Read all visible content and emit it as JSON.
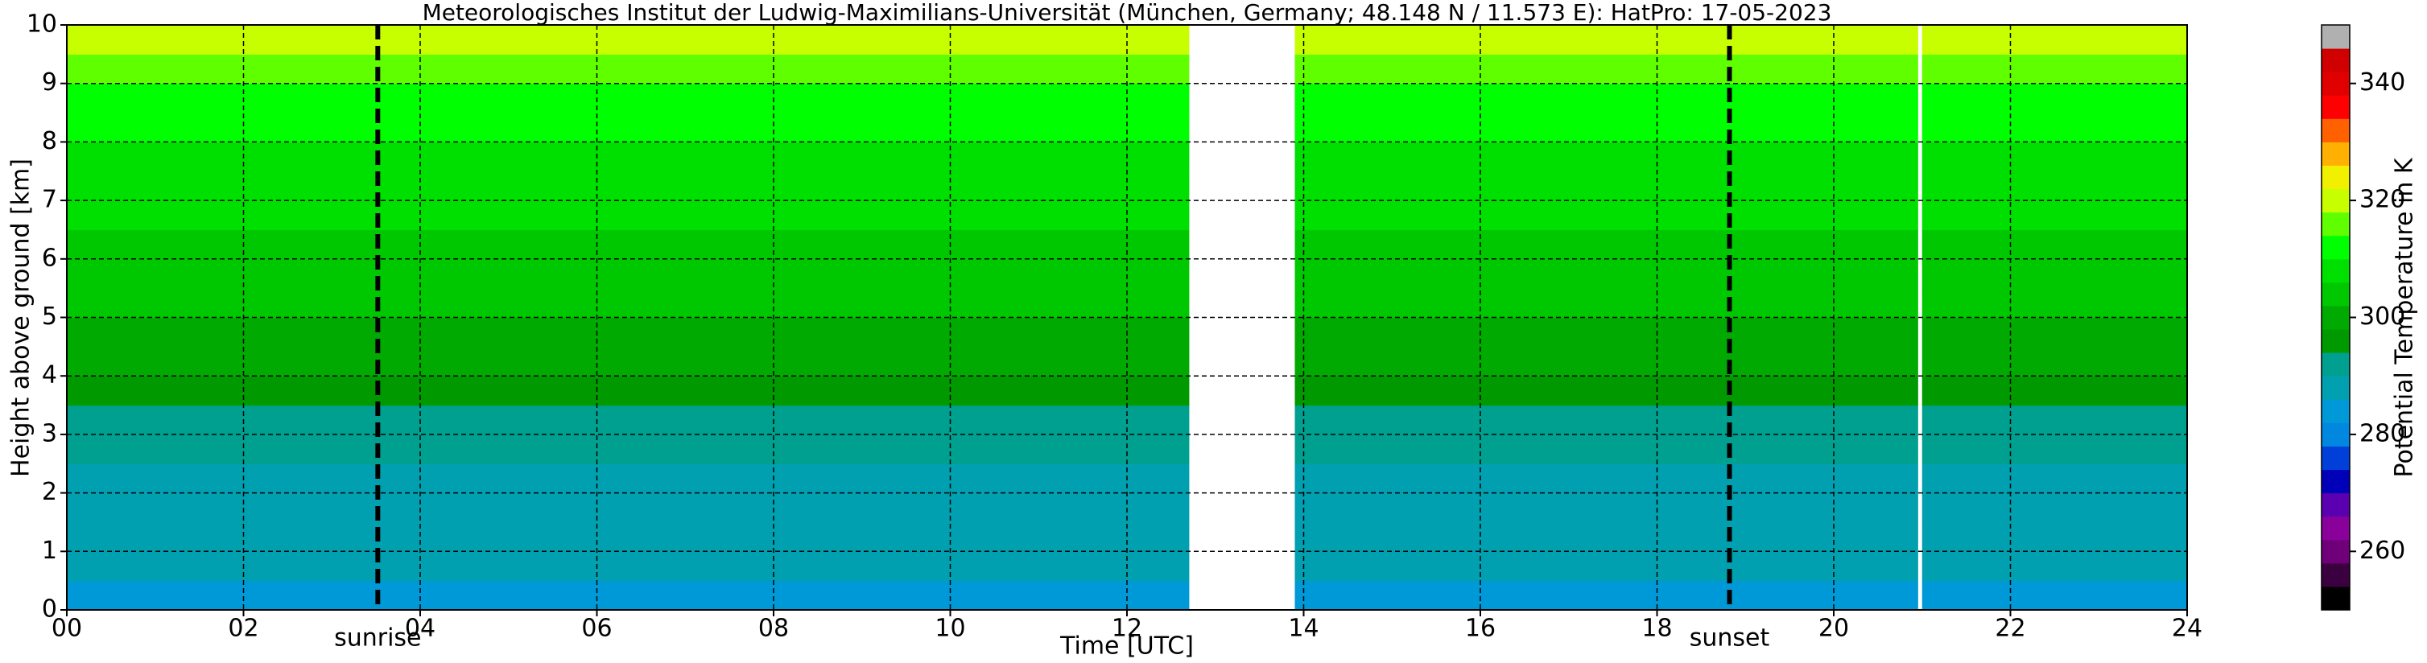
{
  "chart_data": {
    "type": "heatmap",
    "title": "Meteorologisches Institut der Ludwig-Maximilians-Universität (München, Germany; 48.148 N / 11.573 E):    HatPro: 17-05-2023",
    "xlabel": "Time [UTC]",
    "ylabel": "Height above ground [km]",
    "colorbar_label": "Potential Temperature in K",
    "x_edges": [
      0,
      3.5,
      6.5,
      9.5,
      12.7,
      13.9,
      17,
      20.95,
      21.0,
      24
    ],
    "y_edges": [
      0,
      0.5,
      1,
      1.5,
      2,
      2.5,
      3,
      3.5,
      4,
      4.5,
      5,
      5.5,
      6,
      6.5,
      7,
      7.5,
      8,
      8.5,
      9,
      9.5,
      10
    ],
    "z": [
      [
        283,
        287,
        288,
        288.5,
        289,
        290,
        293,
        297,
        299,
        300.5,
        302,
        303.5,
        305,
        306.5,
        308,
        309.5,
        311,
        313,
        316,
        320
      ],
      [
        283,
        286,
        288,
        288.5,
        289,
        290,
        293,
        296,
        299,
        300.5,
        302,
        303.5,
        305,
        306.5,
        308,
        309.5,
        311,
        313,
        316,
        320
      ],
      [
        285,
        287,
        288,
        288.5,
        289,
        290,
        293,
        297,
        299,
        300.5,
        302,
        303.5,
        305,
        306.5,
        308,
        309.5,
        311,
        313,
        316,
        320
      ],
      [
        285,
        287,
        288,
        288.5,
        289,
        290,
        293,
        297,
        299,
        300.5,
        302,
        303.5,
        305,
        306.5,
        308,
        309.5,
        311,
        313,
        316,
        320
      ],
      [
        null,
        null,
        null,
        null,
        null,
        null,
        null,
        null,
        null,
        null,
        null,
        null,
        null,
        null,
        null,
        null,
        null,
        null,
        null,
        null
      ],
      [
        285,
        287,
        288,
        288.5,
        289,
        290,
        293,
        297,
        299,
        300.5,
        302,
        303.5,
        305,
        306.5,
        308,
        309.5,
        311,
        313,
        316,
        320
      ],
      [
        285,
        287,
        288,
        288.5,
        289,
        290,
        293,
        297,
        299,
        300.5,
        302,
        303.5,
        305,
        306.5,
        308,
        309.5,
        311,
        313,
        316,
        320
      ],
      [
        null,
        null,
        null,
        null,
        null,
        null,
        null,
        null,
        null,
        null,
        null,
        null,
        null,
        null,
        null,
        null,
        null,
        null,
        null,
        null
      ],
      [
        285,
        287,
        288,
        288.5,
        289,
        290,
        293,
        297,
        299,
        300.5,
        302,
        303.5,
        305,
        306.5,
        308,
        309.5,
        311,
        313,
        316,
        320
      ]
    ],
    "xlim": [
      0,
      24
    ],
    "ylim": [
      0,
      10
    ],
    "xticks": [
      {
        "value": 0,
        "label": "00"
      },
      {
        "value": 2,
        "label": "02"
      },
      {
        "value": 4,
        "label": "04"
      },
      {
        "value": 6,
        "label": "06"
      },
      {
        "value": 8,
        "label": "08"
      },
      10,
      12,
      14,
      16,
      18,
      20,
      22,
      24
    ],
    "yticks": [
      0,
      1,
      2,
      3,
      4,
      5,
      6,
      7,
      8,
      9,
      10
    ],
    "grid": true,
    "clim": [
      250,
      350
    ],
    "cticks": [
      260,
      280,
      300,
      320,
      340
    ],
    "colors": [
      "#000000",
      "#3a0040",
      "#70007a",
      "#8a009a",
      "#5a00b0",
      "#0000b8",
      "#0040d8",
      "#0088e0",
      "#0099d8",
      "#00a0b0",
      "#00a090",
      "#009a00",
      "#00aa00",
      "#00c800",
      "#00e000",
      "#00ff00",
      "#60ff00",
      "#c8ff00",
      "#f0f000",
      "#ffb000",
      "#ff6000",
      "#ff0000",
      "#e00000",
      "#d00000",
      "#b0b0b0"
    ],
    "annotations": [
      {
        "label": "sunrise",
        "x": 3.52
      },
      {
        "label": "sunset",
        "x": 18.82
      }
    ]
  }
}
